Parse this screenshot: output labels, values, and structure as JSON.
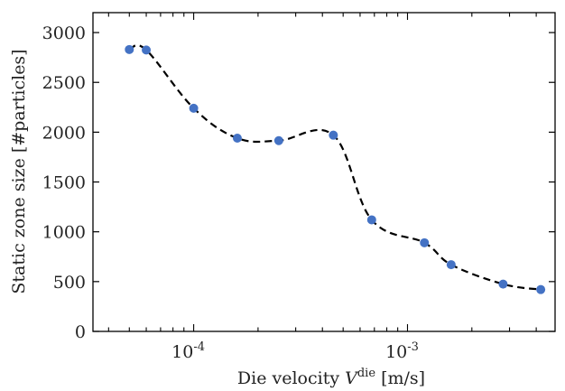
{
  "chart_data": {
    "type": "scatter",
    "x_scale": "log",
    "xlabel_prefix": "Die velocity ",
    "xlabel_var": "V",
    "xlabel_sup": "die",
    "xlabel_unit": " [m/s]",
    "ylabel": "Static zone size [#particles]",
    "xlim": [
      3.38e-05,
      0.0049
    ],
    "ylim": [
      0,
      3200
    ],
    "yticks": [
      0,
      500,
      1000,
      1500,
      2000,
      2500,
      3000
    ],
    "ytick_labels": [
      "0",
      "500",
      "1000",
      "1500",
      "2000",
      "2500",
      "3000"
    ],
    "xticks_major": [
      0.0001,
      0.001
    ],
    "xtick_labels": [
      {
        "base": "10",
        "exp": "-4"
      },
      {
        "base": "10",
        "exp": "-3"
      }
    ],
    "series": [
      {
        "x": [
          5e-05,
          6e-05,
          0.0001,
          0.00016,
          0.00025,
          0.00045,
          0.00068,
          0.0012,
          0.0016,
          0.0028,
          0.0042
        ],
        "y": [
          2830,
          2825,
          2240,
          1940,
          1915,
          1970,
          1120,
          890,
          670,
          475,
          420
        ],
        "color": "#4472c4",
        "line_color": "#000000",
        "line_style": "dashed"
      }
    ],
    "grid": false,
    "legend": "none"
  }
}
